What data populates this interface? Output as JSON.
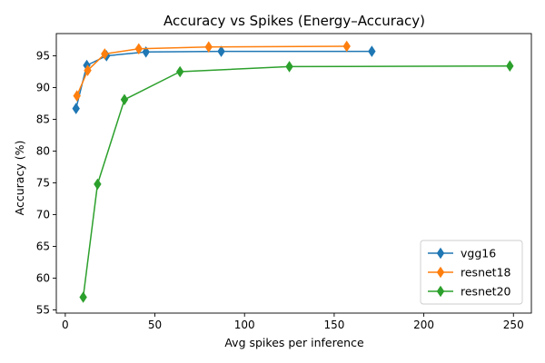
{
  "chart_data": {
    "type": "line",
    "title": "Accuracy vs Spikes (Energy–Accuracy)",
    "xlabel": "Avg spikes per inference",
    "ylabel": "Accuracy (%)",
    "xlim": [
      -5,
      260
    ],
    "ylim": [
      54.5,
      98.5
    ],
    "xticks": [
      0,
      50,
      100,
      150,
      200,
      250
    ],
    "yticks": [
      55,
      60,
      65,
      70,
      75,
      80,
      85,
      90,
      95
    ],
    "grid": false,
    "legend_position": "lower-right",
    "marker": "thin-diamond",
    "series": [
      {
        "name": "vgg16",
        "color": "#1f77b4",
        "points": [
          [
            6,
            86.7
          ],
          [
            12,
            93.5
          ],
          [
            23,
            95.0
          ],
          [
            45,
            95.6
          ],
          [
            87,
            95.7
          ],
          [
            171,
            95.7
          ]
        ]
      },
      {
        "name": "resnet18",
        "color": "#ff7f0e",
        "points": [
          [
            6.5,
            88.7
          ],
          [
            12.5,
            92.7
          ],
          [
            22,
            95.3
          ],
          [
            41,
            96.1
          ],
          [
            80,
            96.4
          ],
          [
            157,
            96.5
          ]
        ]
      },
      {
        "name": "resnet20",
        "color": "#2ca02c",
        "points": [
          [
            10,
            57.0
          ],
          [
            18,
            74.8
          ],
          [
            33,
            88.1
          ],
          [
            64,
            92.5
          ],
          [
            125,
            93.3
          ],
          [
            248,
            93.4
          ]
        ]
      }
    ]
  }
}
